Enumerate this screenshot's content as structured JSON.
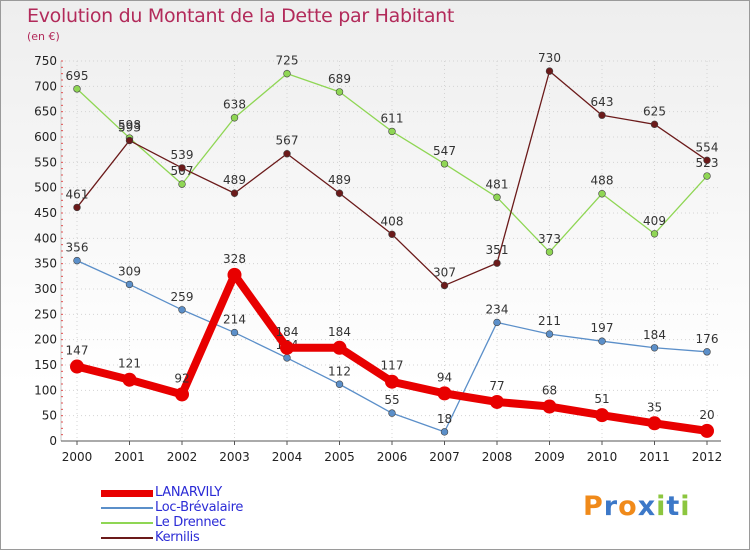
{
  "header": {
    "title": "Evolution du Montant de la Dette par Habitant",
    "unit": "(en €)"
  },
  "logo": {
    "text": "Proxiti",
    "letters": [
      {
        "char": "P",
        "color": "#f08a1a"
      },
      {
        "char": "r",
        "color": "#3c78c8"
      },
      {
        "char": "o",
        "color": "#f08a1a"
      },
      {
        "char": "x",
        "color": "#3c78c8"
      },
      {
        "char": "i",
        "color": "#8cc63f"
      },
      {
        "char": "t",
        "color": "#3c78c8"
      },
      {
        "char": "i",
        "color": "#8cc63f"
      }
    ]
  },
  "chart_data": {
    "type": "line",
    "title": "Evolution du Montant de la Dette par Habitant",
    "subtitle": "(en €)",
    "xlabel": "",
    "ylabel": "",
    "x": [
      "2000",
      "2001",
      "2002",
      "2003",
      "2004",
      "2005",
      "2006",
      "2007",
      "2008",
      "2009",
      "2010",
      "2011",
      "2012"
    ],
    "ylim": [
      0,
      750
    ],
    "yticks": [
      0,
      50,
      100,
      150,
      200,
      250,
      300,
      350,
      400,
      450,
      500,
      550,
      600,
      650,
      700,
      750
    ],
    "grid": true,
    "legend_position": "bottom-left",
    "series": [
      {
        "name": "LANARVILY",
        "color": "#e80000",
        "values": [
          147,
          121,
          92,
          328,
          184,
          184,
          117,
          94,
          77,
          68,
          51,
          35,
          20
        ],
        "labels": [
          "147",
          "121",
          "92",
          "328",
          "184",
          "184",
          "117",
          "94",
          "77",
          "68",
          "51",
          "35",
          "20"
        ]
      },
      {
        "name": "Loc-Brévalaire",
        "color": "#5b8fc9",
        "values": [
          356,
          309,
          259,
          214,
          164,
          112,
          55,
          18,
          234,
          211,
          197,
          184,
          176
        ],
        "labels": [
          "356",
          "309",
          "259",
          "214",
          "164",
          "112",
          "55",
          "18",
          "234",
          "211",
          "197",
          "184",
          "176"
        ]
      },
      {
        "name": "Le Drennec",
        "color": "#8fd654",
        "values": [
          695,
          598,
          507,
          638,
          725,
          689,
          611,
          547,
          481,
          373,
          488,
          409,
          523
        ],
        "labels": [
          "695",
          "598",
          "507",
          "638",
          "725",
          "689",
          "611",
          "547",
          "481",
          "373",
          "488",
          "409",
          "523"
        ]
      },
      {
        "name": "Kernilis",
        "color": "#6b1a1a",
        "values": [
          461,
          593,
          539,
          489,
          567,
          489,
          408,
          307,
          351,
          730,
          643,
          625,
          554
        ],
        "labels": [
          "461",
          "593",
          "539",
          "489",
          "567",
          "489",
          "408",
          "307",
          "351",
          "730",
          "643",
          "625",
          "554"
        ]
      }
    ]
  }
}
